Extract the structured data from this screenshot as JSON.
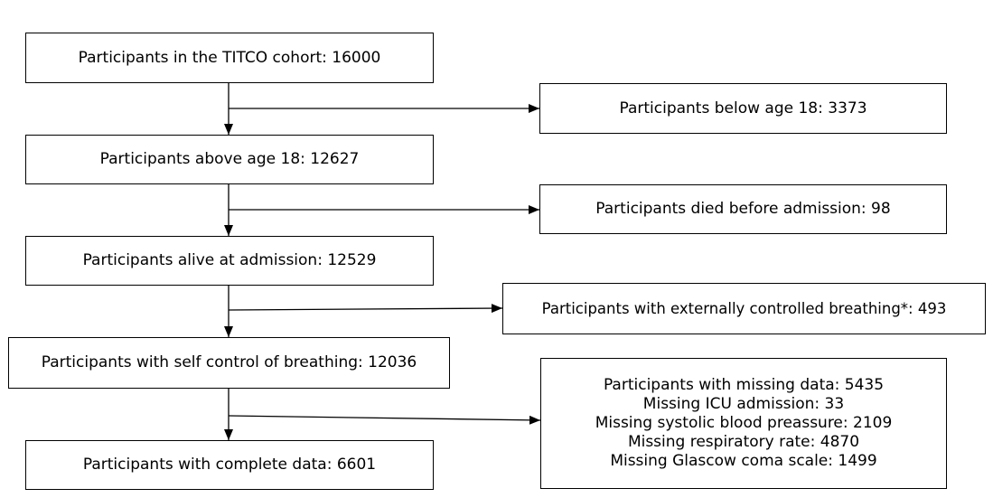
{
  "main_flow": {
    "cohort": "Participants in the TITCO cohort: 16000",
    "above_18": "Participants above age 18: 12627",
    "alive": "Participants alive at admission: 12529",
    "self_breathing": "Participants with self control of breathing: 12036",
    "complete": "Participants with complete data: 6601"
  },
  "exclusions": {
    "below_18": "Participants below age 18: 3373",
    "died": "Participants died before admission: 98",
    "external_breathing": "Participants with externally controlled breathing*: 493",
    "missing": {
      "total": "Participants with missing data: 5435",
      "icu": "Missing ICU admission: 33",
      "sbp": "Missing systolic blood preassure: 2109",
      "rr": "Missing respiratory rate: 4870",
      "gcs": "Missing Glascow coma scale: 1499"
    }
  }
}
